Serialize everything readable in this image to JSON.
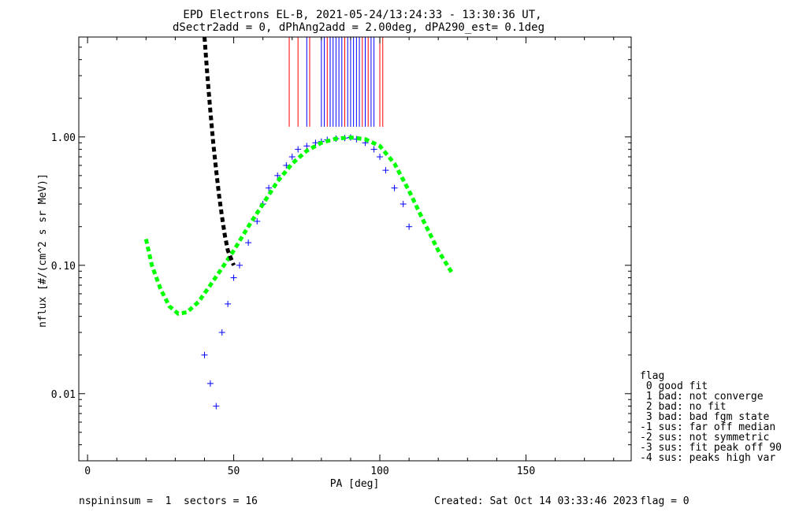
{
  "chart_data": {
    "type": "line",
    "title": "EPD Electrons EL-B, 2021-05-24/13:24:33 - 13:30:36 UT,",
    "subtitle": "dSectr2add = 0, dPhAng2add = 2.00deg, dPA290_est=   0.1deg",
    "xlabel": "PA [deg]",
    "ylabel": "nflux [#/(cm^2 s sr MeV)]",
    "xlim": [
      -3,
      186
    ],
    "ylim": [
      0.003,
      6
    ],
    "yscale": "log",
    "x_ticks": [
      0,
      50,
      100,
      150
    ],
    "x_tick_labels": [
      "0",
      "50",
      "100",
      "150"
    ],
    "y_ticks": [
      0.01,
      0.1,
      1.0
    ],
    "y_tick_labels": [
      "0.01",
      "0.10",
      "1.00"
    ],
    "grid": false,
    "colors": {
      "red": "#ff0000",
      "blue": "#0000ff",
      "green": "#00ff00",
      "black": "#000000"
    },
    "series": [
      {
        "color": "#00ff00",
        "style": "dashed-thick",
        "x": [
          20,
          22,
          25,
          28,
          31,
          34,
          38,
          42,
          46,
          50,
          55,
          60,
          65,
          70,
          75,
          80,
          85,
          90,
          95,
          100,
          105,
          110,
          115,
          120,
          125
        ],
        "y": [
          0.16,
          0.1,
          0.065,
          0.048,
          0.042,
          0.043,
          0.052,
          0.07,
          0.095,
          0.13,
          0.2,
          0.3,
          0.45,
          0.62,
          0.78,
          0.9,
          0.97,
          0.99,
          0.96,
          0.85,
          0.62,
          0.38,
          0.22,
          0.13,
          0.085
        ]
      },
      {
        "color": "#000000",
        "style": "dashed-thick",
        "x": [
          40,
          41,
          42,
          43,
          44,
          45,
          46,
          47,
          48,
          50
        ],
        "y": [
          6,
          3,
          1.6,
          0.9,
          0.55,
          0.35,
          0.24,
          0.17,
          0.13,
          0.1
        ]
      }
    ],
    "blue_marker_x": [
      40,
      42,
      44,
      46,
      48,
      50,
      52,
      55,
      58,
      60,
      62,
      65,
      68,
      70,
      72,
      75,
      78,
      80,
      82,
      85,
      88,
      90,
      92,
      95,
      98,
      100,
      102,
      105,
      108,
      110
    ],
    "blue_marker_y": [
      0.02,
      0.012,
      0.008,
      0.03,
      0.05,
      0.08,
      0.1,
      0.15,
      0.22,
      0.3,
      0.4,
      0.5,
      0.6,
      0.7,
      0.8,
      0.85,
      0.9,
      0.92,
      0.95,
      0.97,
      0.98,
      0.99,
      0.96,
      0.9,
      0.8,
      0.7,
      0.55,
      0.4,
      0.3,
      0.2
    ],
    "vertical_bars_x": [
      69,
      72,
      75,
      76,
      80,
      81,
      82,
      83,
      84,
      85,
      86,
      87,
      88,
      89,
      90,
      91,
      92,
      93,
      94,
      95,
      96,
      97,
      98,
      100,
      101
    ],
    "vertical_bars_colors": [
      "red",
      "red",
      "blue",
      "red",
      "blue",
      "blue",
      "red",
      "blue",
      "blue",
      "blue",
      "blue",
      "blue",
      "red",
      "blue",
      "blue",
      "blue",
      "blue",
      "blue",
      "red",
      "blue",
      "red",
      "blue",
      "blue",
      "red",
      "red"
    ],
    "legend": {
      "placement": "right",
      "title": "flag",
      "entries": [
        " 0 good fit",
        " 1 bad: not converge",
        " 2 bad: no fit",
        " 3 bad: bad fgm state",
        "-1 sus: far off median",
        "-2 sus: not symmetric",
        "-3 sus: fit peak off 90",
        "-4 sus: peaks high var"
      ]
    }
  },
  "footer": {
    "left": "nspininsum =  1  sectors = 16",
    "created": "Created: Sat Oct 14 03:33:46 2023",
    "flag": "flag = 0"
  }
}
